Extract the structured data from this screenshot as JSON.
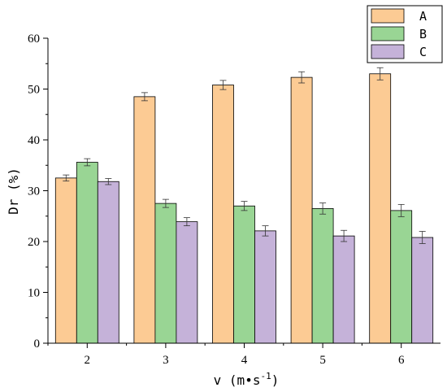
{
  "chart_data": {
    "type": "bar",
    "title": "",
    "xlabel": "v (m•s",
    "xlabel_sup": "-1",
    "xlabel_close": ")",
    "ylabel": "Dr (%)",
    "categories": [
      "2",
      "3",
      "4",
      "5",
      "6"
    ],
    "ylim": [
      0,
      60
    ],
    "yticks": [
      "0",
      "10",
      "20",
      "30",
      "40",
      "50",
      "60"
    ],
    "legend_position": "top-right",
    "grid": false,
    "series": [
      {
        "name": "A",
        "color": "#FCCB94",
        "values": [
          32.5,
          48.5,
          50.8,
          52.3,
          53.0
        ],
        "errors": [
          0.6,
          0.8,
          0.9,
          1.1,
          1.2
        ]
      },
      {
        "name": "B",
        "color": "#99D594",
        "values": [
          35.6,
          27.5,
          27.0,
          26.5,
          26.1
        ],
        "errors": [
          0.7,
          0.8,
          0.9,
          1.1,
          1.2
        ]
      },
      {
        "name": "C",
        "color": "#C5B2D9",
        "values": [
          31.8,
          23.9,
          22.1,
          21.1,
          20.8
        ],
        "errors": [
          0.6,
          0.8,
          1.0,
          1.1,
          1.2
        ]
      }
    ]
  }
}
